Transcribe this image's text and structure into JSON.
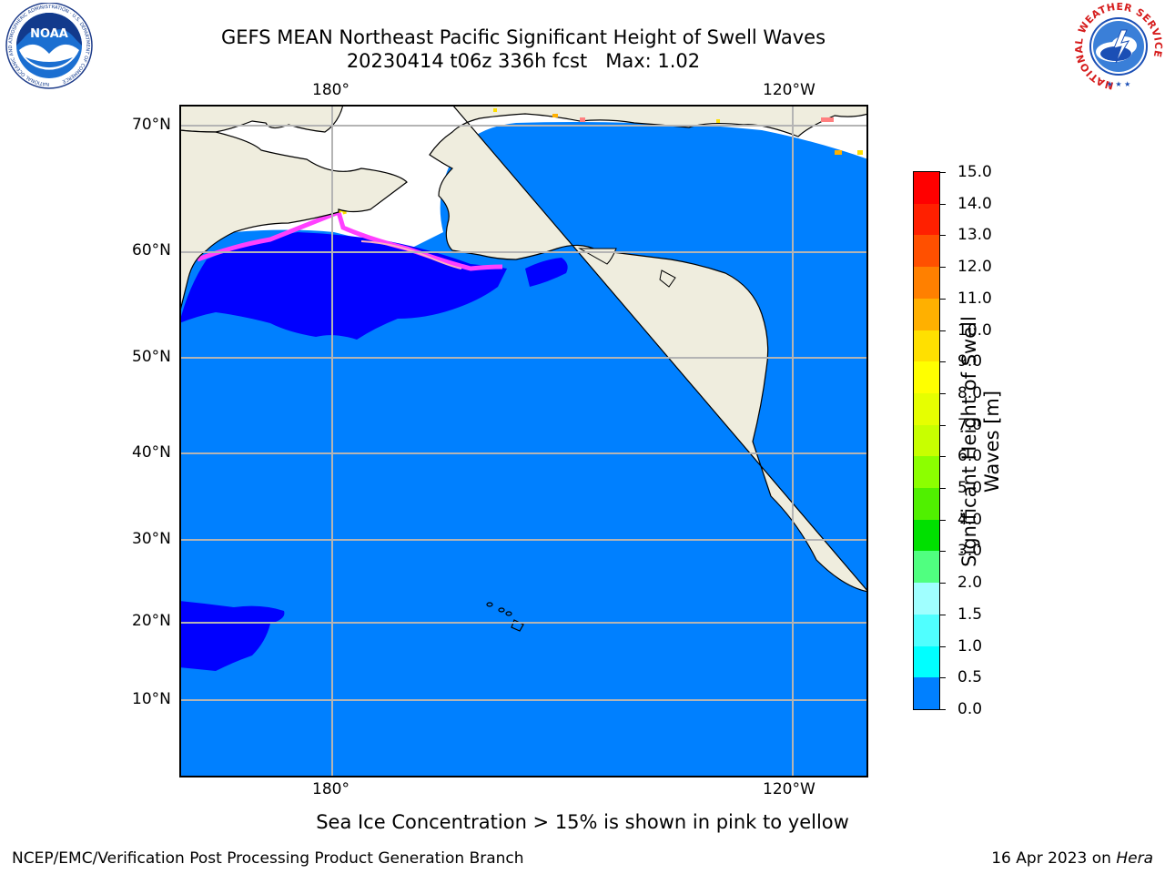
{
  "title": {
    "line1": "GEFS MEAN Northeast Pacific Significant Height of Swell Waves",
    "line2": "20230414 t06z 336h fcst   Max: 1.02"
  },
  "map": {
    "lon_labels": [
      "180°",
      "120°W"
    ],
    "lat_labels": [
      "70°N",
      "60°N",
      "50°N",
      "40°N",
      "30°N",
      "20°N",
      "10°N"
    ],
    "ocean_color": "#0080ff",
    "land_color": "#efedde",
    "low_wave_color": "#0000ff"
  },
  "colorbar": {
    "title_line1": "Significant Height of Swell",
    "title_line2": "Waves [m]",
    "tick_labels": [
      "15.0",
      "14.0",
      "13.0",
      "12.0",
      "11.0",
      "10.0",
      "9.0",
      "8.0",
      "7.0",
      "6.0",
      "5.0",
      "4.0",
      "3.0",
      "2.0",
      "1.5",
      "1.0",
      "0.5",
      "0.0"
    ],
    "colors": [
      "#ff0000",
      "#ff2000",
      "#ff5000",
      "#ff8000",
      "#ffb000",
      "#ffe000",
      "#ffff00",
      "#e6ff00",
      "#c8ff00",
      "#8cff00",
      "#50f000",
      "#00e000",
      "#50ff80",
      "#a0ffff",
      "#50ffff",
      "#00ffff",
      "#0080ff",
      "#0000ff"
    ]
  },
  "subtitle": "Sea Ice Concentration > 15% is shown in pink to yellow",
  "footer": {
    "left": "NCEP/EMC/Verification Post Processing Product Generation Branch",
    "right_date": "16 Apr 2023 on ",
    "right_machine": "Hera"
  },
  "logos": {
    "noaa_text": "NOAA",
    "noaa_ring": "NATIONAL OCEANIC AND ATMOSPHERIC ADMINISTRATION · U.S. DEPARTMENT OF COMMERCE",
    "nws_ring": "NATIONAL WEATHER SERVICE"
  }
}
